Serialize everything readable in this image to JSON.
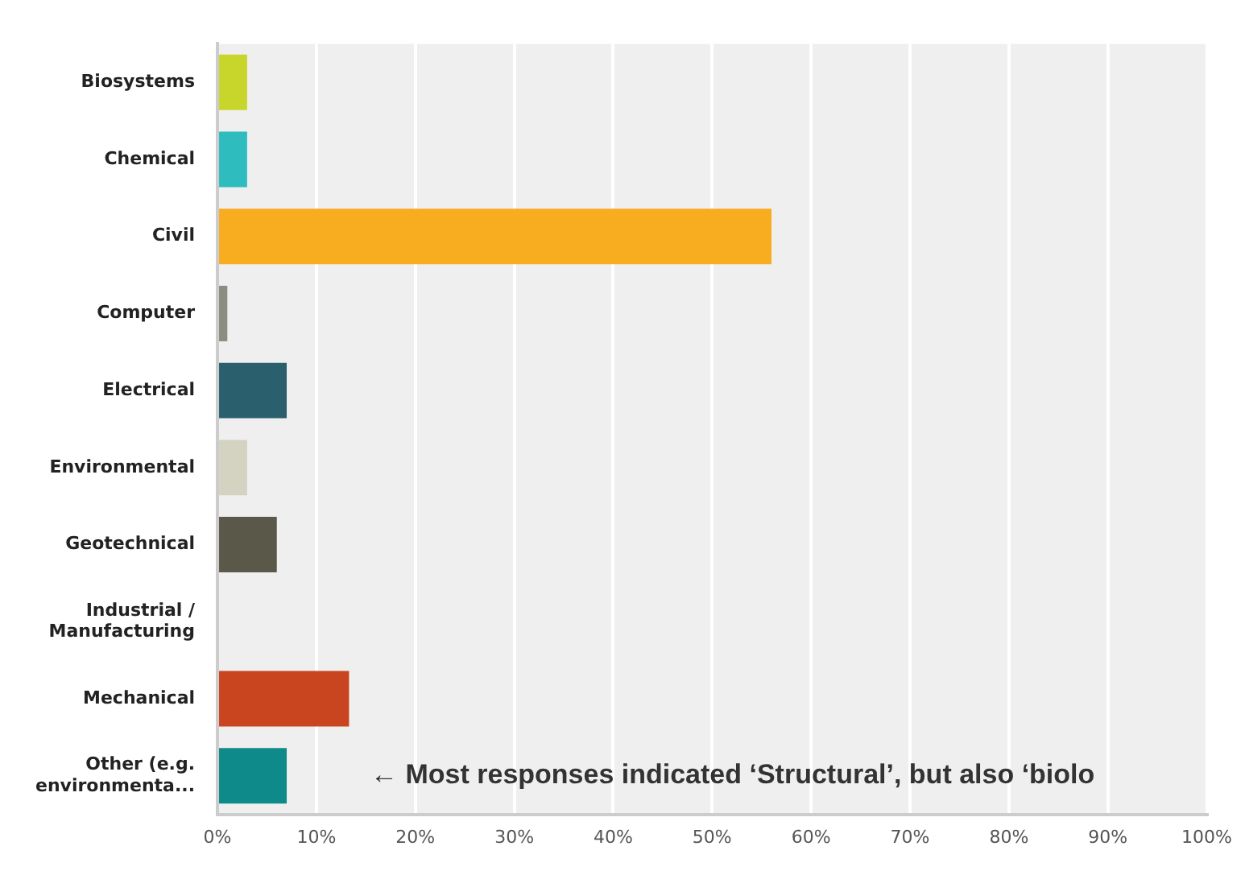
{
  "chart_data": {
    "type": "bar",
    "orientation": "horizontal",
    "categories": [
      "Biosystems",
      "Chemical",
      "Civil",
      "Computer",
      "Electrical",
      "Environmental",
      "Geotechnical",
      "Industrial /\nManufacturing",
      "Mechanical",
      "Other (e.g.\nenvironmenta..."
    ],
    "values": [
      3,
      3,
      56,
      1,
      7,
      3,
      6,
      0,
      13.3,
      7
    ],
    "colors": [
      "#c8d62b",
      "#2fbcbf",
      "#f8ac1f",
      "#8c8c80",
      "#2a5f6e",
      "#d4d2c0",
      "#5a5849",
      "#999999",
      "#c9451f",
      "#0e8a8a"
    ],
    "xlim": [
      0,
      100
    ],
    "xticks": [
      {
        "value": 0,
        "label": "0%"
      },
      {
        "value": 10,
        "label": "10%"
      },
      {
        "value": 20,
        "label": "20%"
      },
      {
        "value": 30,
        "label": "30%"
      },
      {
        "value": 40,
        "label": "40%"
      },
      {
        "value": 50,
        "label": "50%"
      },
      {
        "value": 60,
        "label": "60%"
      },
      {
        "value": 70,
        "label": "70%"
      },
      {
        "value": 80,
        "label": "80%"
      },
      {
        "value": 90,
        "label": "90%"
      },
      {
        "value": 100,
        "label": "100%"
      }
    ],
    "grid": "x",
    "legend": false,
    "annotations": [
      "← Most responses indicated ‘Structural’, but also ‘biolo"
    ]
  }
}
